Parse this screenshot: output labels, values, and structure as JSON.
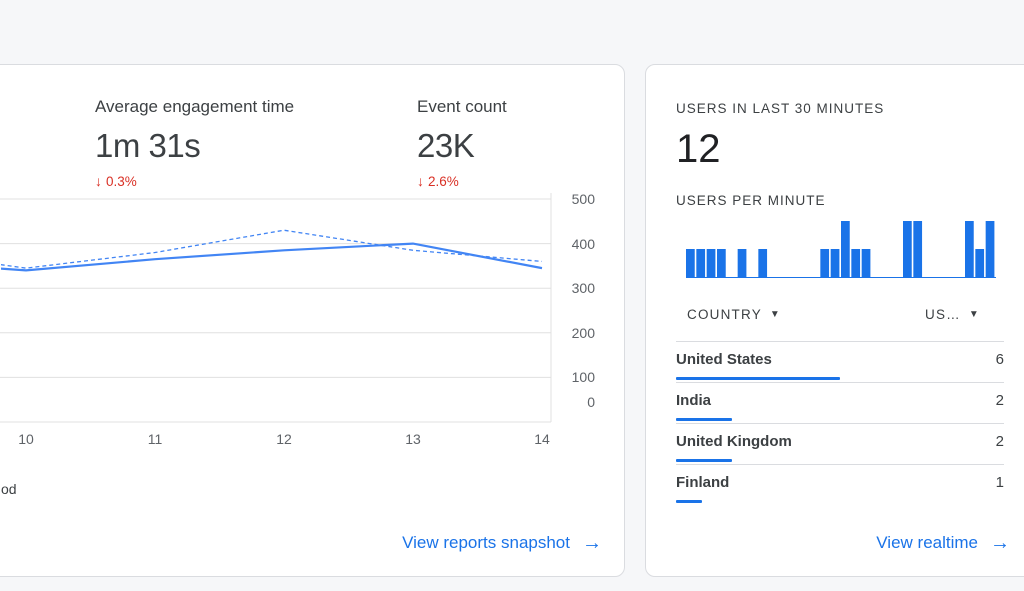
{
  "main": {
    "metrics": [
      {
        "label": "Average engagement time",
        "value": "1m 31s",
        "delta": "0.3%"
      },
      {
        "label": "Event count",
        "value": "23K",
        "delta": "2.6%"
      }
    ],
    "legend_fragment": "od",
    "link_label": "View reports snapshot",
    "delta_color": "#d93025"
  },
  "chart_data": {
    "type": "line",
    "x": [
      9.75,
      10,
      11,
      12,
      13,
      14
    ],
    "x_ticks": [
      "10",
      "11",
      "12",
      "13",
      "14"
    ],
    "y_ticks": [
      "500",
      "400",
      "300",
      "200",
      "100",
      "0"
    ],
    "ylim": [
      0,
      500
    ],
    "series": [
      {
        "style": "solid",
        "color": "#4285f4",
        "values": [
          345,
          340,
          365,
          385,
          400,
          345
        ]
      },
      {
        "style": "dashed",
        "color": "#4285f4",
        "values": [
          355,
          345,
          380,
          430,
          385,
          360
        ]
      }
    ]
  },
  "realtime": {
    "title": "USERS IN LAST 30 MINUTES",
    "count": "12",
    "per_minute_title": "USERS PER MINUTE",
    "per_minute": [
      1,
      1,
      1,
      1,
      0,
      1,
      0,
      1,
      0,
      0,
      0,
      0,
      0,
      1,
      1,
      2,
      1,
      1,
      0,
      0,
      0,
      2,
      2,
      0,
      0,
      0,
      0,
      2,
      1,
      2
    ],
    "col_country": "COUNTRY",
    "col_users": "US…",
    "rows": [
      {
        "country": "United States",
        "users": "6",
        "share": 0.5
      },
      {
        "country": "India",
        "users": "2",
        "share": 0.17
      },
      {
        "country": "United Kingdom",
        "users": "2",
        "share": 0.17
      },
      {
        "country": "Finland",
        "users": "1",
        "share": 0.08
      }
    ],
    "link_label": "View realtime",
    "accent": "#1a73e8"
  }
}
